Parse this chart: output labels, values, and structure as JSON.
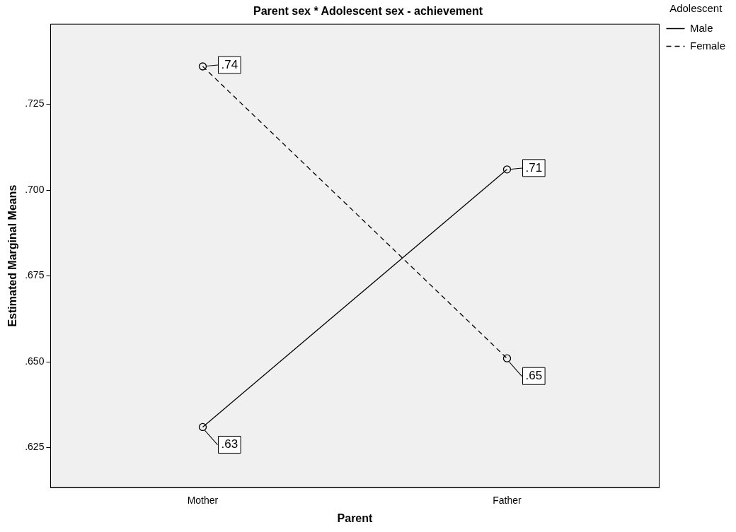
{
  "chart_data": {
    "type": "line",
    "title": "Parent sex * Adolescent sex - achievement",
    "xlabel": "Parent",
    "ylabel": "Estimated Marginal Means",
    "legend_title": "Adolescent",
    "categories": [
      "Mother",
      "Father"
    ],
    "series": [
      {
        "name": "Male",
        "color": "#000000",
        "values": [
          0.631,
          0.706
        ],
        "line_style": "solid",
        "value_labels": [
          ".63",
          ".71"
        ]
      },
      {
        "name": "Female",
        "color": "#000000",
        "values": [
          0.736,
          0.651
        ],
        "line_style": "dashed",
        "value_labels": [
          ".74",
          ".65"
        ]
      }
    ],
    "ylim": [
      0.6134,
      0.7483
    ],
    "yticks": [
      {
        "value": 0.625,
        "label": ".625"
      },
      {
        "value": 0.65,
        "label": ".650"
      },
      {
        "value": 0.675,
        "label": ".675"
      },
      {
        "value": 0.7,
        "label": ".700"
      },
      {
        "value": 0.725,
        "label": ".725"
      }
    ],
    "marker": "circle",
    "grid": false,
    "legend": "top right"
  }
}
